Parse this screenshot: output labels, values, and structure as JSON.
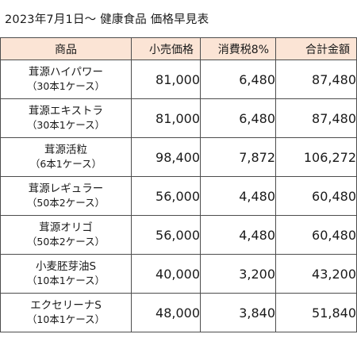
{
  "title": "2023年7月1日～  健康食品  価格早見表",
  "colors": {
    "header_background": "#fbe4d5",
    "border": "#4d4d4d"
  },
  "headers": [
    "商品",
    "小売価格",
    "消費税8%",
    "合計金額"
  ],
  "rows": [
    {
      "name": "茸源ハイパワー",
      "sub": "（30本1ケース）",
      "price": "81,000",
      "tax": "6,480",
      "total": "87,480"
    },
    {
      "name": "茸源エキストラ",
      "sub": "（30本1ケース）",
      "price": "81,000",
      "tax": "6,480",
      "total": "87,480"
    },
    {
      "name": "茸源活粒",
      "sub": "（6本1ケース）",
      "price": "98,400",
      "tax": "7,872",
      "total": "106,272"
    },
    {
      "name": "茸源レギュラー",
      "sub": "（50本2ケース）",
      "price": "56,000",
      "tax": "4,480",
      "total": "60,480"
    },
    {
      "name": "茸源オリゴ",
      "sub": "（50本2ケース）",
      "price": "56,000",
      "tax": "4,480",
      "total": "60,480"
    },
    {
      "name": "小麦胚芽油S",
      "sub": "（10本1ケース）",
      "price": "40,000",
      "tax": "3,200",
      "total": "43,200"
    },
    {
      "name": "エクセリーナS",
      "sub": "（10本1ケース）",
      "price": "48,000",
      "tax": "3,840",
      "total": "51,840"
    }
  ]
}
